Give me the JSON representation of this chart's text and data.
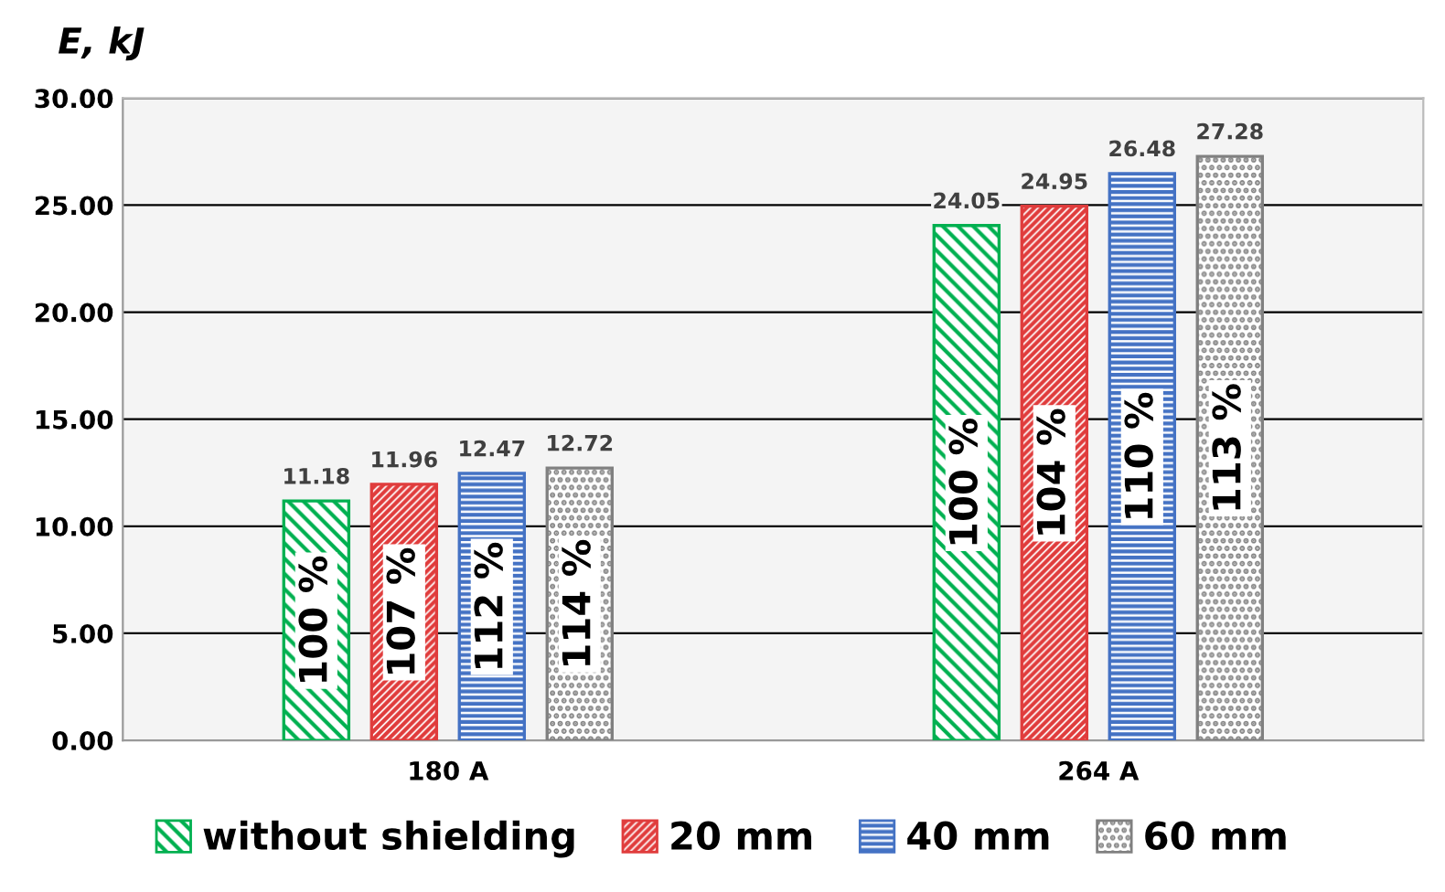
{
  "chart_data": {
    "type": "bar",
    "ylabel": "E, kJ",
    "categories": [
      "180 A",
      "264 A"
    ],
    "series": [
      {
        "name": "without shielding",
        "color": "#00b050",
        "values": [
          11.18,
          24.05
        ]
      },
      {
        "name": "20 mm",
        "color": "#e03c3c",
        "values": [
          11.96,
          24.95
        ]
      },
      {
        "name": "40 mm",
        "color": "#4472c4",
        "values": [
          12.47,
          26.48
        ]
      },
      {
        "name": "60 mm",
        "color": "#808080",
        "values": [
          12.72,
          27.28
        ]
      }
    ],
    "annotations": [
      "100 %",
      "107 %",
      "112 %",
      "114 %",
      "100 %",
      "104 %",
      "110 %",
      "113 %"
    ],
    "ylim": [
      0,
      30
    ],
    "yticks": [
      {
        "value": 0,
        "label": "0.00"
      },
      {
        "value": 5,
        "label": "5.00"
      },
      {
        "value": 10,
        "label": "10.00"
      },
      {
        "value": 15,
        "label": "15.00"
      },
      {
        "value": 20,
        "label": "20.00"
      },
      {
        "value": 25,
        "label": "25.00"
      },
      {
        "value": 30,
        "label": "30.00"
      }
    ],
    "data_labels": true,
    "grid": "y",
    "legend": "bottom"
  }
}
